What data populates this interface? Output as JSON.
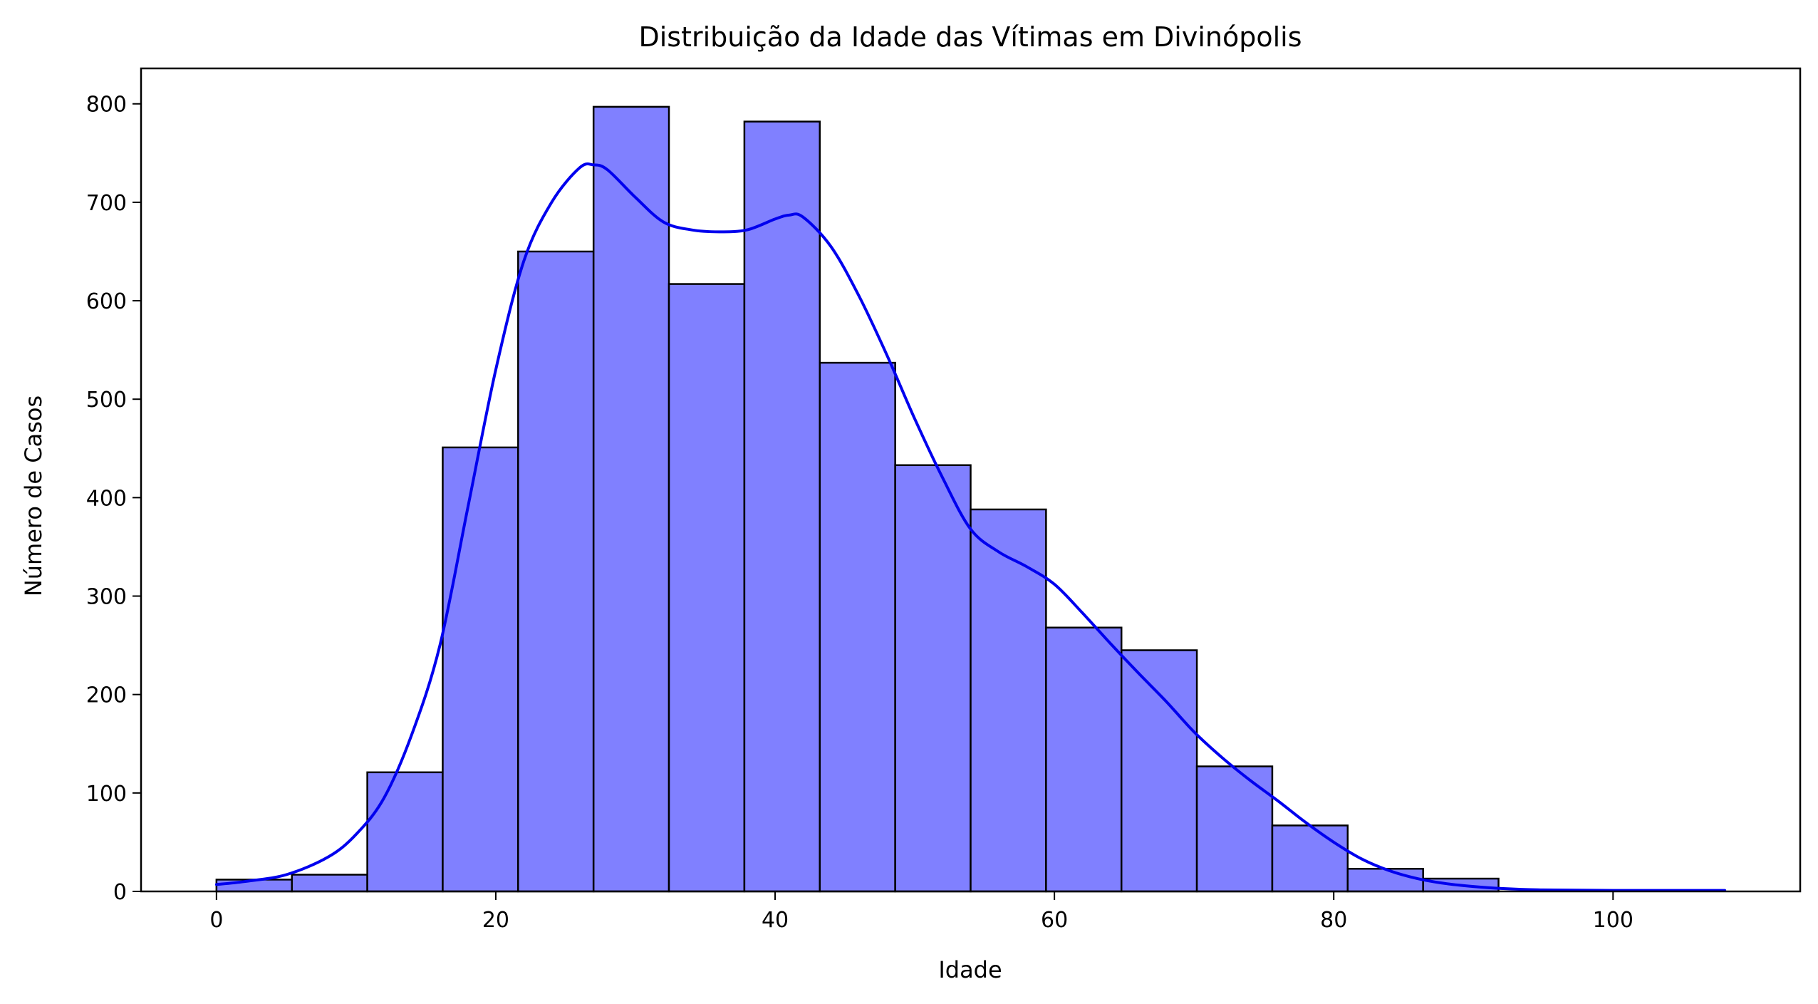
{
  "chart_data": {
    "type": "bar",
    "title": "Distribuição da Idade das Vítimas em Divinópolis",
    "xlabel": "Idade",
    "ylabel": "Número de Casos",
    "xlim": [
      -5.4,
      113.4
    ],
    "ylim": [
      0,
      836
    ],
    "xticks": [
      0,
      20,
      40,
      60,
      80,
      100
    ],
    "yticks": [
      0,
      100,
      200,
      300,
      400,
      500,
      600,
      700,
      800
    ],
    "grid": false,
    "legend": "none",
    "bar_color": "#8080ff",
    "edge_color": "#000000",
    "kde_color": "#0000ee",
    "bins": [
      {
        "x0": 0.0,
        "x1": 5.4,
        "count": 12
      },
      {
        "x0": 5.4,
        "x1": 10.8,
        "count": 17
      },
      {
        "x0": 10.8,
        "x1": 16.2,
        "count": 121
      },
      {
        "x0": 16.2,
        "x1": 21.6,
        "count": 451
      },
      {
        "x0": 21.6,
        "x1": 27.0,
        "count": 650
      },
      {
        "x0": 27.0,
        "x1": 32.4,
        "count": 797
      },
      {
        "x0": 32.4,
        "x1": 37.8,
        "count": 617
      },
      {
        "x0": 37.8,
        "x1": 43.2,
        "count": 782
      },
      {
        "x0": 43.2,
        "x1": 48.6,
        "count": 537
      },
      {
        "x0": 48.6,
        "x1": 54.0,
        "count": 433
      },
      {
        "x0": 54.0,
        "x1": 59.4,
        "count": 388
      },
      {
        "x0": 59.4,
        "x1": 64.8,
        "count": 268
      },
      {
        "x0": 64.8,
        "x1": 70.2,
        "count": 245
      },
      {
        "x0": 70.2,
        "x1": 75.6,
        "count": 127
      },
      {
        "x0": 75.6,
        "x1": 81.0,
        "count": 67
      },
      {
        "x0": 81.0,
        "x1": 86.4,
        "count": 23
      },
      {
        "x0": 86.4,
        "x1": 91.8,
        "count": 13
      }
    ],
    "kde": {
      "x": [
        0,
        2,
        5,
        8,
        10,
        12,
        14,
        16,
        18,
        20,
        22,
        24,
        26,
        27,
        28,
        30,
        32,
        34,
        36,
        38,
        40,
        41,
        42,
        44,
        46,
        48,
        50,
        52,
        54,
        56,
        58,
        60,
        62,
        64,
        66,
        68,
        70,
        72,
        74,
        76,
        78,
        80,
        82,
        84,
        86,
        88,
        90,
        92,
        95,
        100,
        108
      ],
      "y": [
        7,
        10,
        17,
        35,
        58,
        95,
        160,
        250,
        390,
        530,
        640,
        700,
        735,
        738,
        733,
        705,
        680,
        672,
        670,
        672,
        683,
        687,
        685,
        655,
        605,
        545,
        480,
        420,
        368,
        345,
        330,
        312,
        283,
        252,
        222,
        193,
        162,
        136,
        113,
        92,
        70,
        50,
        33,
        21,
        13,
        8,
        5,
        3,
        1.5,
        1,
        1
      ]
    }
  }
}
